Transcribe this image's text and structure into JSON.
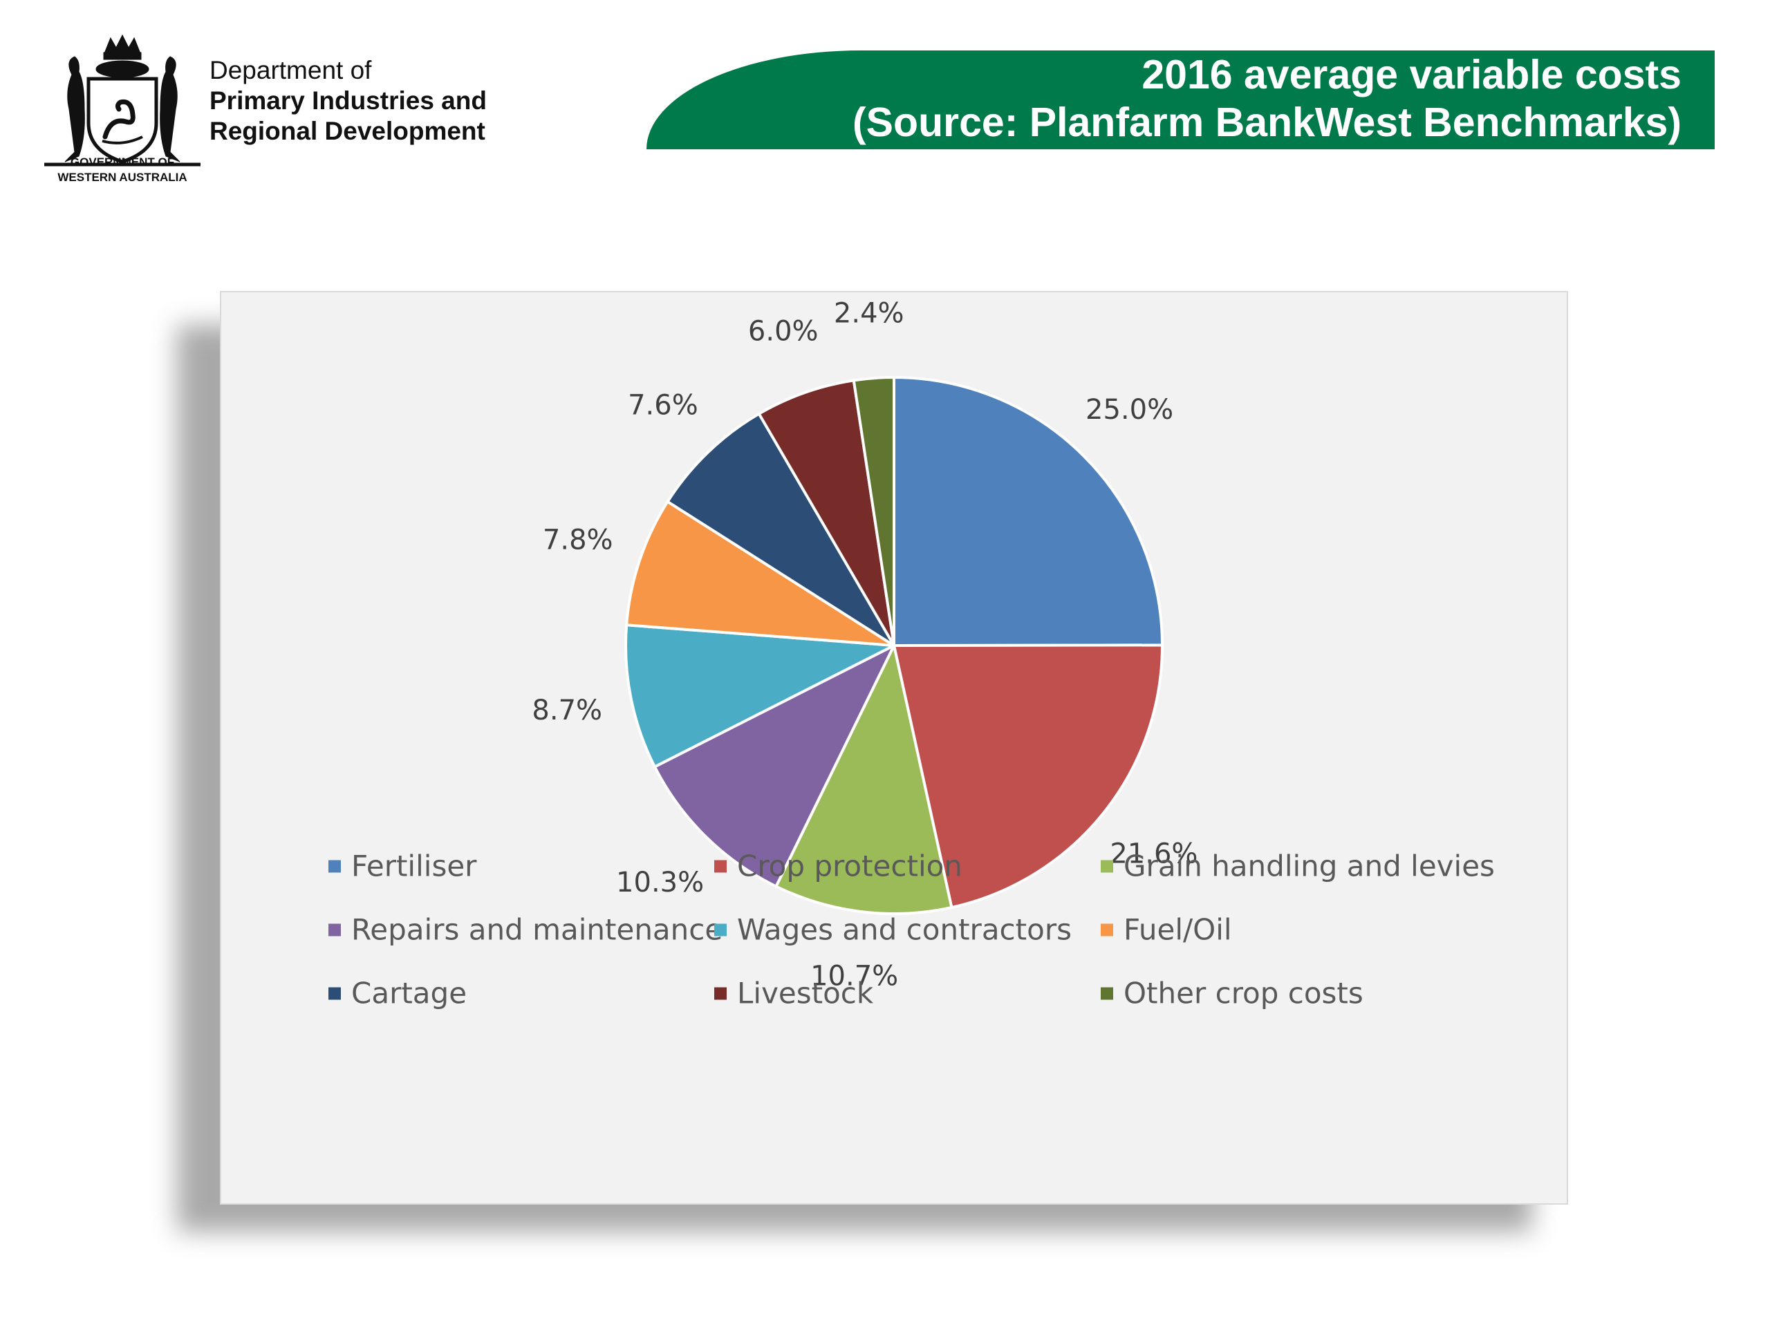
{
  "header": {
    "org_lines": [
      "Department of",
      "Primary Industries and",
      "Regional Development"
    ],
    "gov_label": "GOVERNMENT OF\nWESTERN AUSTRALIA",
    "title_line1": "2016 average variable costs",
    "title_line2": "(Source: Planfarm BankWest Benchmarks)",
    "banner_color": "#007a4a"
  },
  "chart_data": {
    "type": "pie",
    "title": "",
    "start_angle_deg": 0,
    "direction": "clockwise",
    "slices": [
      {
        "label": "Fertiliser",
        "value": 25.0,
        "display": "25.0%",
        "color": "#4f81bd"
      },
      {
        "label": "Crop protection",
        "value": 21.6,
        "display": "21.6%",
        "color": "#c0504d"
      },
      {
        "label": "Grain handling and levies",
        "value": 10.7,
        "display": "10.7%",
        "color": "#9bbb59"
      },
      {
        "label": "Repairs and maintenance",
        "value": 10.3,
        "display": "10.3%",
        "color": "#8064a2"
      },
      {
        "label": "Wages and contractors",
        "value": 8.7,
        "display": "8.7%",
        "color": "#4bacc6"
      },
      {
        "label": "Fuel/Oil",
        "value": 7.8,
        "display": "7.8%",
        "color": "#f79646"
      },
      {
        "label": "Cartage",
        "value": 7.6,
        "display": "7.6%",
        "color": "#2c4d75"
      },
      {
        "label": "Livestock",
        "value": 6.0,
        "display": "6.0%",
        "color": "#772c2a"
      },
      {
        "label": "Other crop costs",
        "value": 2.4,
        "display": "2.4%",
        "color": "#5f7530"
      }
    ],
    "legend": {
      "position": "bottom",
      "columns": 3
    }
  }
}
